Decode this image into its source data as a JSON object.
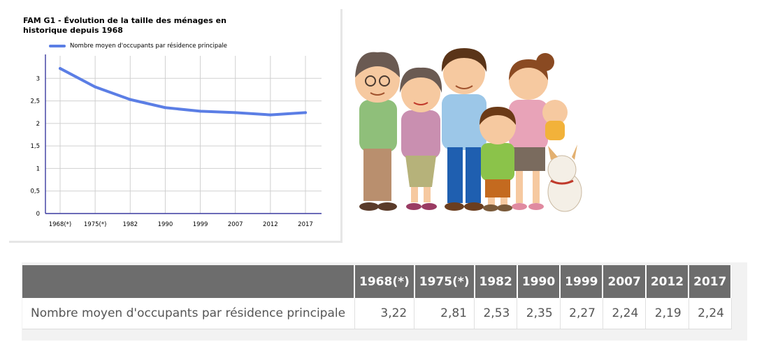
{
  "chart_data": {
    "type": "line",
    "title": "FAM G1 - Évolution de la taille des ménages en historique depuis 1968",
    "categories": [
      "1968(*)",
      "1975(*)",
      "1982",
      "1990",
      "1999",
      "2007",
      "2012",
      "2017"
    ],
    "series": [
      {
        "name": "Nombre moyen d'occupants par résidence principale",
        "values": [
          3.22,
          2.81,
          2.53,
          2.35,
          2.27,
          2.24,
          2.19,
          2.24
        ]
      }
    ],
    "y_ticks": [
      "0",
      "0,5",
      "1",
      "1,5",
      "2",
      "2,5",
      "3"
    ],
    "ylim": [
      0,
      3.5
    ],
    "grid": true,
    "legend_position": "top-left",
    "colors": {
      "line": "#5b7ee5",
      "axis": "#3a3aa0",
      "grid": "#d0d0d0"
    }
  },
  "table": {
    "headers": [
      "1968(*)",
      "1975(*)",
      "1982",
      "1990",
      "1999",
      "2007",
      "2012",
      "2017"
    ],
    "row": {
      "label": "Nombre moyen d'occupants par résidence principale",
      "values": [
        "3,22",
        "2,81",
        "2,53",
        "2,35",
        "2,27",
        "2,24",
        "2,19",
        "2,24"
      ]
    },
    "colors": {
      "header_bg": "#6d6d6d",
      "header_text": "#ffffff"
    }
  }
}
